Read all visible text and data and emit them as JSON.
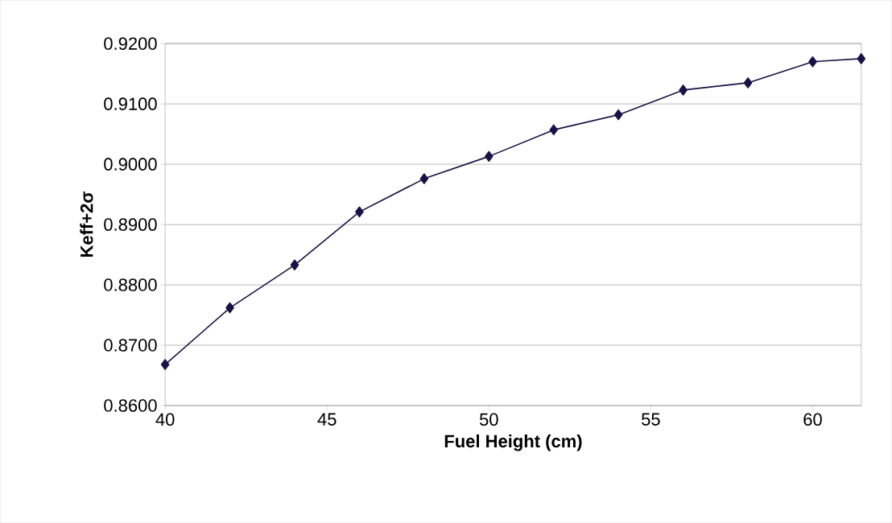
{
  "chart_data": {
    "type": "line",
    "xlabel": "Fuel Height (cm)",
    "ylabel": "Keff+2σ",
    "x": [
      40,
      42,
      44,
      46,
      48,
      50,
      52,
      54,
      56,
      58,
      60,
      61.5
    ],
    "series": [
      {
        "color": "#1a1245",
        "values": [
          0.8668,
          0.8762,
          0.8833,
          0.8921,
          0.8976,
          0.9013,
          0.9057,
          0.9082,
          0.9123,
          0.9135,
          0.917,
          0.9175
        ]
      }
    ],
    "xlim": [
      40,
      61.5
    ],
    "xticks": [
      40,
      45,
      50,
      55,
      60
    ],
    "ylim": [
      0.86,
      0.92
    ],
    "yticks": [
      {
        "value": 0.86,
        "label": "0.8600"
      },
      {
        "value": 0.87,
        "label": "0.8700"
      },
      {
        "value": 0.88,
        "label": "0.8800"
      },
      {
        "value": 0.89,
        "label": "0.8900"
      },
      {
        "value": 0.9,
        "label": "0.9000"
      },
      {
        "value": 0.91,
        "label": "0.9100"
      },
      {
        "value": 0.92,
        "label": "0.9200"
      }
    ],
    "grid": "y",
    "marker": "diamond",
    "line_style": "solid"
  }
}
